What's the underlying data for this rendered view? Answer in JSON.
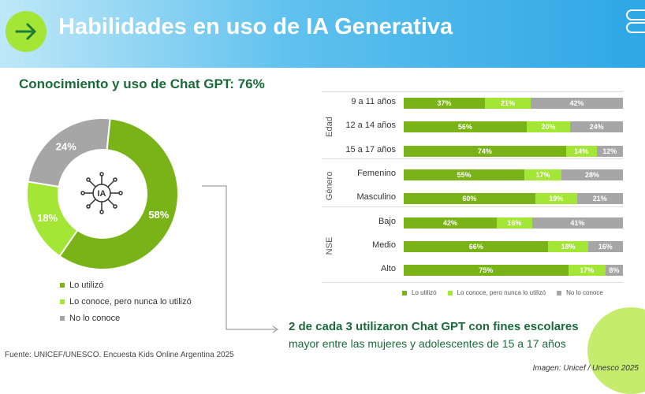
{
  "header": {
    "title": "Habilidades en uso de IA Generativa",
    "arrow_icon": "arrow-right-icon"
  },
  "subtitle": "Conocimiento y uso de Chat GPT: 76%",
  "donut_center_label": "IA",
  "colors": {
    "used": "#7ab317",
    "known": "#a3e635",
    "unknown": "#a6a6a6",
    "accent_dark": "#1b6b3a"
  },
  "chart_data": [
    {
      "type": "pie",
      "title": "Conocimiento y uso de Chat GPT: 76%",
      "slices": [
        {
          "label": "Lo utilizó",
          "value": 58,
          "display": "58%"
        },
        {
          "label": "Lo conoce, pero nunca lo utilizó",
          "value": 18,
          "display": "18%"
        },
        {
          "label": "No lo conoce",
          "value": 24,
          "display": "24%"
        }
      ],
      "legend": [
        "Lo utilizó",
        "Lo conoce, pero nunca lo utilizó",
        "No lo conoce"
      ],
      "legend_position": "bottom"
    },
    {
      "type": "bar",
      "orientation": "horizontal",
      "stacked": true,
      "groups": [
        {
          "name": "Edad",
          "categories": [
            "9 a 11 años",
            "12 a 14 años",
            "15 a 17 años"
          ]
        },
        {
          "name": "Género",
          "categories": [
            "Femenino",
            "Masculino"
          ]
        },
        {
          "name": "NSE",
          "categories": [
            "Bajo",
            "Medio",
            "Alto"
          ]
        }
      ],
      "categories": [
        "9 a 11 años",
        "12 a 14 años",
        "15 a 17 años",
        "Femenino",
        "Masculino",
        "Bajo",
        "Medio",
        "Alto"
      ],
      "series": [
        {
          "name": "Lo utilizó",
          "values": [
            37,
            56,
            74,
            55,
            60,
            42,
            66,
            75
          ]
        },
        {
          "name": "Lo conoce, pero nunca lo utilizó",
          "values": [
            21,
            20,
            14,
            17,
            19,
            16,
            18,
            17
          ]
        },
        {
          "name": "No lo conoce",
          "values": [
            42,
            24,
            12,
            28,
            21,
            41,
            16,
            8
          ]
        }
      ],
      "xlim": [
        0,
        100
      ],
      "legend_position": "bottom"
    }
  ],
  "footnote": {
    "line1": "2 de cada 3 utilizaron Chat GPT con fines escolares",
    "line2": "mayor entre las mujeres y adolescentes de 15 a 17 años"
  },
  "source": "Fuente: UNICEF/UNESCO. Encuesta Kids Online Argentina 2025",
  "credit": "Imagen: Unicef / Unesco 2025"
}
